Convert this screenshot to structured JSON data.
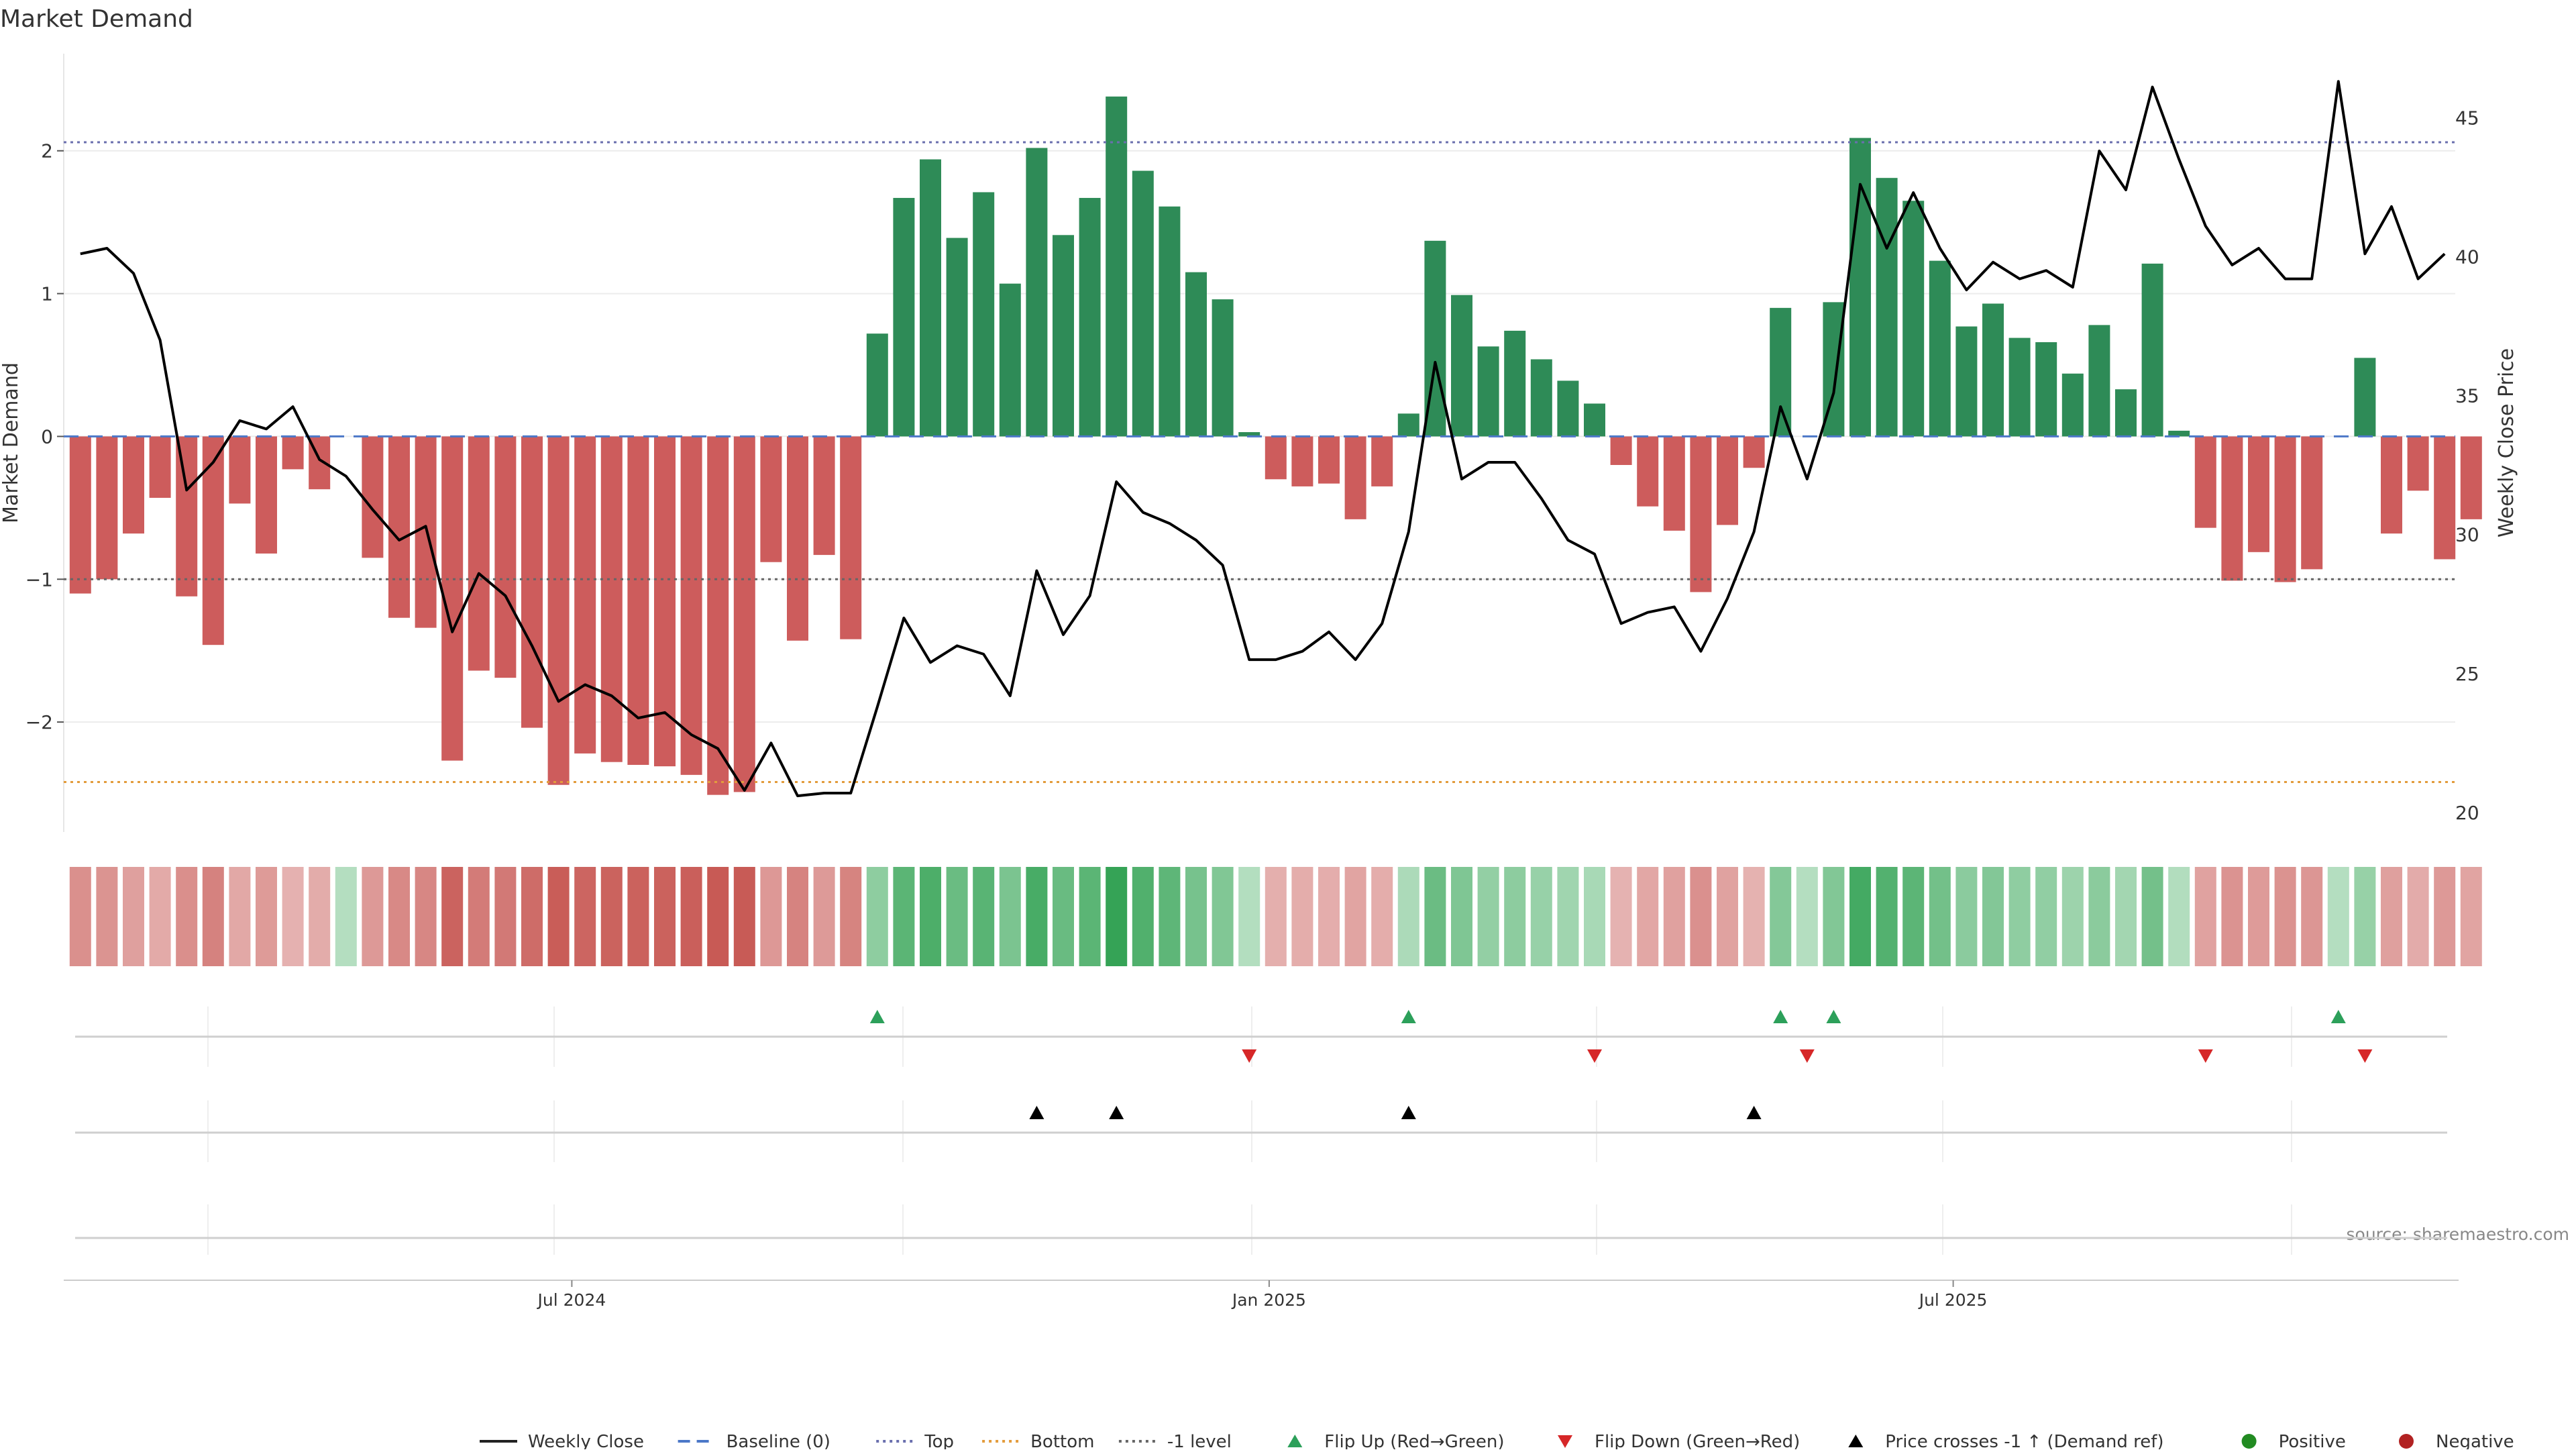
{
  "chart_data": {
    "type": "bar",
    "title": "Market Demand",
    "ylabel": "Market Demand",
    "y2label": "Weekly Close Price",
    "ylim": [
      -2.77,
      2.68
    ],
    "y2lim": [
      19.3,
      47.3
    ],
    "yticks": [
      {
        "v": 2,
        "label": "2"
      },
      {
        "v": 1,
        "label": "1"
      },
      {
        "v": 0,
        "label": "0"
      },
      {
        "v": -1,
        "label": "−1"
      },
      {
        "v": -2,
        "label": "−2"
      }
    ],
    "y2ticks": [
      {
        "v": 45,
        "label": "45"
      },
      {
        "v": 40,
        "label": "40"
      },
      {
        "v": 35,
        "label": "35"
      },
      {
        "v": 30,
        "label": "30"
      },
      {
        "v": 25,
        "label": "25"
      },
      {
        "v": 20,
        "label": "20"
      }
    ],
    "reference_lines": {
      "top": 2.06,
      "bottom": -2.42,
      "minus_one": -1,
      "baseline": 0
    },
    "demand": [
      -1.1,
      -1.0,
      -0.68,
      -0.43,
      -1.12,
      -1.46,
      -0.47,
      -0.82,
      -0.23,
      -0.37,
      0,
      -0.85,
      -1.27,
      -1.34,
      -2.27,
      -1.64,
      -1.69,
      -2.04,
      -2.44,
      -2.22,
      -2.28,
      -2.3,
      -2.31,
      -2.37,
      -2.51,
      -2.49,
      -0.88,
      -1.43,
      -0.83,
      -1.42,
      0.72,
      1.67,
      1.94,
      1.39,
      1.71,
      1.07,
      2.02,
      1.41,
      1.67,
      2.38,
      1.86,
      1.61,
      1.15,
      0.96,
      0.03,
      -0.3,
      -0.35,
      -0.33,
      -0.58,
      -0.35,
      0.16,
      1.37,
      0.99,
      0.63,
      0.74,
      0.54,
      0.39,
      0.23,
      -0.2,
      -0.49,
      -0.66,
      -1.09,
      -0.62,
      -0.22,
      0.9,
      0,
      0.94,
      2.09,
      1.81,
      1.65,
      1.23,
      0.77,
      0.93,
      0.69,
      0.66,
      0.44,
      0.78,
      0.33,
      1.21,
      0.04,
      -0.64,
      -1.01,
      -0.81,
      -1.02,
      -0.93,
      0,
      0.55,
      -0.68,
      -0.38,
      -0.86,
      -0.58
    ],
    "weekly_close": [
      40.1,
      40.3,
      39.4,
      37.0,
      31.6,
      32.6,
      34.1,
      33.8,
      34.6,
      32.7,
      32.1,
      30.9,
      29.8,
      30.3,
      26.5,
      28.6,
      27.8,
      26.0,
      24.0,
      24.6,
      24.2,
      23.4,
      23.6,
      22.8,
      22.3,
      20.8,
      22.5,
      20.6,
      20.7,
      20.7,
      23.8,
      27.0,
      25.4,
      26.0,
      25.7,
      24.2,
      28.7,
      26.4,
      27.8,
      31.9,
      30.8,
      30.4,
      29.8,
      28.9,
      25.5,
      25.5,
      25.8,
      26.5,
      25.5,
      26.8,
      30.1,
      36.2,
      32.0,
      32.6,
      32.6,
      31.3,
      29.8,
      29.3,
      26.8,
      27.2,
      27.4,
      25.8,
      27.7,
      30.1,
      34.6,
      32.0,
      35.1,
      42.6,
      40.3,
      42.3,
      40.3,
      38.8,
      39.8,
      39.2,
      39.5,
      38.9,
      43.8,
      42.4,
      46.1,
      43.5,
      41.1,
      39.7,
      40.3,
      39.2,
      39.2,
      46.3,
      40.1,
      41.8,
      39.2,
      40.1
    ],
    "x_ticks": [
      {
        "index": 18.5,
        "label": "Jul 2024"
      },
      {
        "index": 44.75,
        "label": "Jan 2025"
      },
      {
        "index": 70.5,
        "label": "Jul 2025"
      }
    ],
    "flip_up_indices": [
      30,
      50,
      64,
      66,
      85
    ],
    "flip_down_indices": [
      44,
      57,
      65,
      80,
      86
    ],
    "price_cross_indices": [
      36,
      39,
      50,
      63
    ],
    "colors": {
      "positive": "#2e8b57",
      "negative": "#cd5c5c",
      "price": "#000000",
      "baseline": "#4c78c8",
      "top": "#6a6fae",
      "bottom": "#e39c3c",
      "minus_one": "#666666",
      "flip_up": "#2ca05a",
      "flip_down": "#d62728",
      "positive_dot": "#228b22",
      "negative_dot": "#b22222"
    },
    "legend": [
      {
        "label": "Weekly Close",
        "kind": "line",
        "color": "#222222"
      },
      {
        "label": "Baseline (0)",
        "kind": "dash",
        "color": "#4c78c8"
      },
      {
        "label": "Top",
        "kind": "dot",
        "color": "#6a6fae"
      },
      {
        "label": "Bottom",
        "kind": "dot",
        "color": "#e39c3c"
      },
      {
        "label": "-1 level",
        "kind": "dot",
        "color": "#666666"
      },
      {
        "label": "Flip Up (Red→Green)",
        "kind": "tri-up",
        "color": "#2ca05a"
      },
      {
        "label": "Flip Down (Green→Red)",
        "kind": "tri-down",
        "color": "#d62728"
      },
      {
        "label": "Price crosses -1 ↑ (Demand ref)",
        "kind": "tri-up",
        "color": "#000000"
      },
      {
        "label": "Positive",
        "kind": "circle",
        "color": "#228b22"
      },
      {
        "label": "Negative",
        "kind": "circle",
        "color": "#b22222"
      }
    ],
    "source": "source: sharemaestro.com"
  }
}
